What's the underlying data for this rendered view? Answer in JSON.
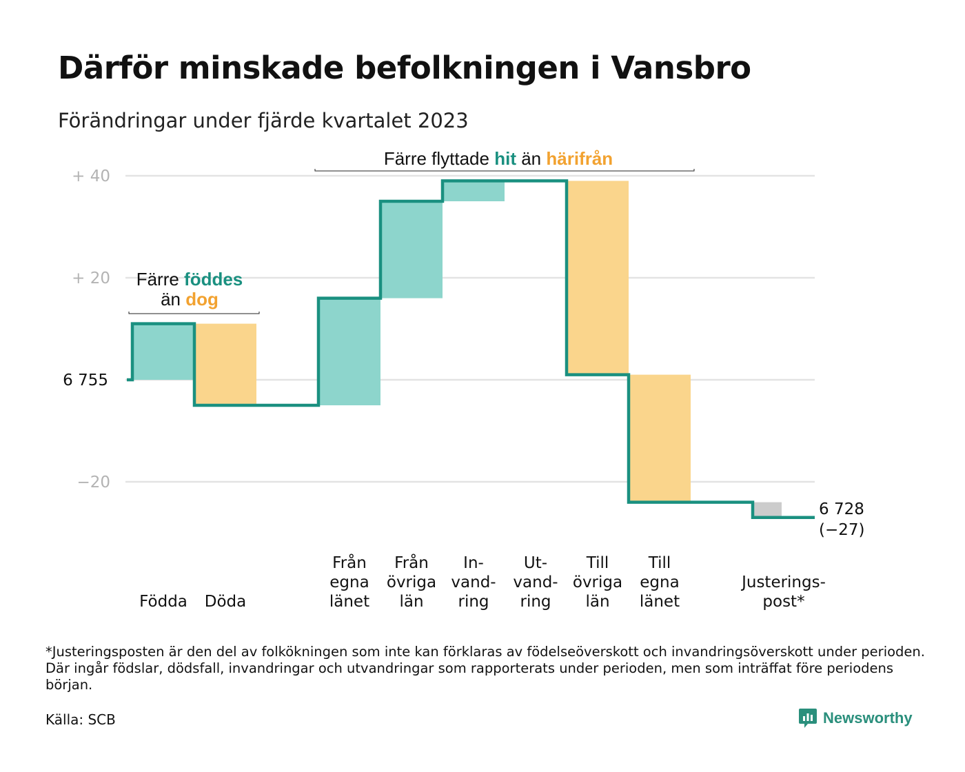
{
  "title": "Därför minskade befolkningen i Vansbro",
  "subtitle": "Förändringar under fjärde kvartalet 2023",
  "footnote": "*Justeringsposten är den del av folkökningen som inte kan förklaras av födelseöverskott och invandringsöverskott under perioden. Där ingår födslar, dödsfall, invandringar och utvandringar som rapporterats under perioden, men som inträffat före periodens början.",
  "source": "Källa: SCB",
  "brand": "Newsworthy",
  "colors": {
    "line": "#1a9080",
    "positive": "#8dd5cc",
    "negative": "#fad58c",
    "adjustment": "#cccccc",
    "grid": "#e3e3e3",
    "teal_text": "#1a9080",
    "orange_text": "#f2a230"
  },
  "chart_data": {
    "type": "waterfall",
    "start_value": 6755,
    "start_label": "6  755",
    "end_value": 6728,
    "end_label": "6 728",
    "change_label": "(−27)",
    "ylim": [
      -32,
      42
    ],
    "yticks": [
      {
        "value": 40,
        "label": "+  40"
      },
      {
        "value": 20,
        "label": "+  20"
      },
      {
        "value": 0,
        "label": ""
      },
      {
        "value": -20,
        "label": "−20"
      }
    ],
    "steps": [
      {
        "id": "fodda",
        "label_lines": [
          "Födda"
        ],
        "value": 11,
        "kind": "positive"
      },
      {
        "id": "doda",
        "label_lines": [
          "Döda"
        ],
        "value": -16,
        "kind": "negative"
      },
      {
        "id": "gap",
        "label_lines": [],
        "value": 0,
        "kind": "none"
      },
      {
        "id": "fran-egna-lanet",
        "label_lines": [
          "Från",
          "egna",
          "länet"
        ],
        "value": 21,
        "kind": "positive"
      },
      {
        "id": "fran-ovriga-lan",
        "label_lines": [
          "Från",
          "övriga",
          "län"
        ],
        "value": 19,
        "kind": "positive"
      },
      {
        "id": "invandring",
        "label_lines": [
          "In-",
          "vand-",
          "ring"
        ],
        "value": 4,
        "kind": "positive"
      },
      {
        "id": "utvandring",
        "label_lines": [
          "Ut-",
          "vand-",
          "ring"
        ],
        "value": 0,
        "kind": "negative"
      },
      {
        "id": "till-ovriga-lan",
        "label_lines": [
          "Till",
          "övriga",
          "län"
        ],
        "value": -38,
        "kind": "negative"
      },
      {
        "id": "till-egna-lanet",
        "label_lines": [
          "Till",
          "egna",
          "länet"
        ],
        "value": -25,
        "kind": "negative"
      },
      {
        "id": "gap2",
        "label_lines": [],
        "value": 0,
        "kind": "none"
      },
      {
        "id": "justeringspost",
        "label_lines": [
          "Justerings-",
          "post*"
        ],
        "value": -3,
        "kind": "adjustment"
      }
    ],
    "annotations": [
      {
        "id": "fodda-doda",
        "parts": [
          [
            {
              "text": "Färre ",
              "color": "black"
            },
            {
              "text": "föddes",
              "color": "teal"
            }
          ],
          [
            {
              "text": "än ",
              "color": "black"
            },
            {
              "text": "dog",
              "color": "orange"
            }
          ]
        ]
      },
      {
        "id": "flyttade",
        "parts": [
          [
            {
              "text": "Färre flyttade ",
              "color": "black"
            },
            {
              "text": "hit",
              "color": "teal"
            },
            {
              "text": "  än ",
              "color": "black"
            },
            {
              "text": "härifrån",
              "color": "orange"
            }
          ]
        ]
      }
    ]
  }
}
